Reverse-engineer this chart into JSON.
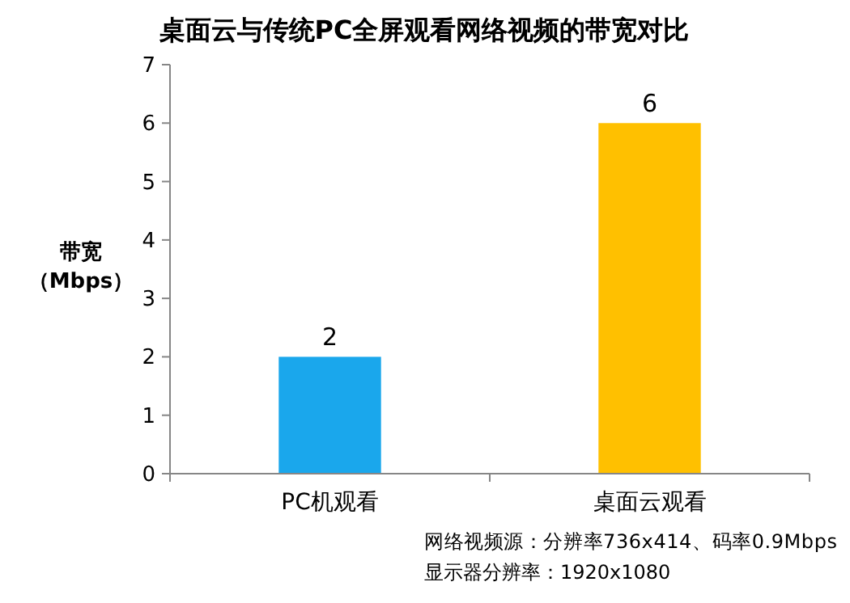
{
  "chart_data": {
    "type": "bar",
    "title": "桌面云与传统PC全屏观看网络视频的带宽对比",
    "ylabel": "带宽（Mbps）",
    "categories": [
      "PC机观看",
      "桌面云观看"
    ],
    "values": [
      2,
      6
    ],
    "colors": [
      "#1aa7ec",
      "#ffc000"
    ],
    "ylim": [
      0,
      7
    ],
    "yticks": [
      0,
      1,
      2,
      3,
      4,
      5,
      6,
      7
    ],
    "grid": false,
    "data_labels": true,
    "annotations": [
      "网络视频源：分辨率736x414、码率0.9Mbps",
      "显示器分辨率：1920x1080"
    ]
  }
}
